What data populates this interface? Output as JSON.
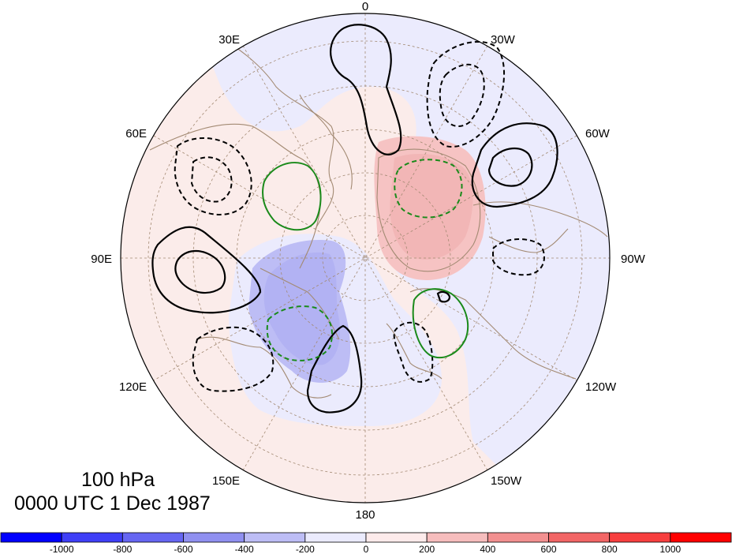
{
  "map": {
    "level_label": "100 hPa",
    "time_label": "0000 UTC 1 Dec 1987",
    "projection": "north polar stereographic",
    "longitude_labels": [
      "0",
      "30W",
      "60W",
      "90W",
      "120W",
      "150W",
      "180",
      "150E",
      "120E",
      "90E",
      "60E",
      "30E"
    ]
  },
  "colorbar": {
    "ticks": [
      "-1000",
      "-800",
      "-600",
      "-400",
      "-200",
      "0",
      "200",
      "400",
      "600",
      "800",
      "1000"
    ],
    "colors": [
      "#0000ff",
      "#3f3ff7",
      "#6666f2",
      "#9090f0",
      "#bdbdf5",
      "#ebebfd",
      "#fdebeb",
      "#f6bdbd",
      "#f29090",
      "#f26666",
      "#f73f3f",
      "#ff0000"
    ]
  },
  "colors": {
    "land_outline": "#a38a73",
    "graticule": "#a38a73",
    "positive_contour": "#000000",
    "negative_contour": "#000000",
    "green_contour": "#1a8a1a"
  }
}
